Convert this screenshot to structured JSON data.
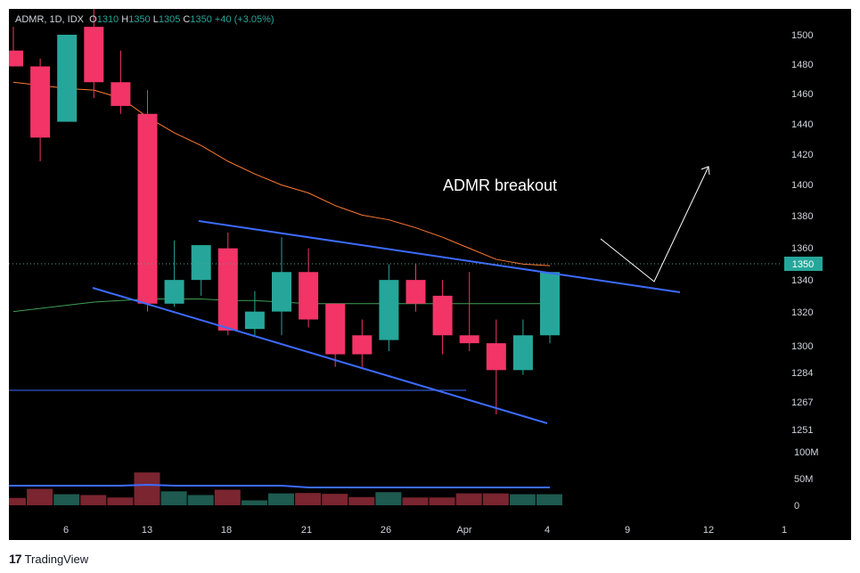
{
  "header": {
    "symbol": "ADMR, 1D, IDX",
    "o_label": "O",
    "o_value": "1310",
    "h_label": "H",
    "h_value": "1350",
    "l_label": "L",
    "l_value": "1305",
    "c_label": "C",
    "c_value": "1350",
    "change": "+40 (+3.05%)"
  },
  "footer": {
    "logo": "17",
    "brand": "TradingView"
  },
  "chart_data": {
    "type": "candlestick",
    "annotation": "ADMR breakout",
    "last_price_label": "1350",
    "y_ticks": [
      1500,
      1480,
      1460,
      1440,
      1420,
      1400,
      1380,
      1360,
      1340,
      1320,
      1300,
      1284,
      1267,
      1251
    ],
    "y_tick_labels": [
      "1500",
      "1480",
      "1460",
      "1440",
      "1420",
      "1400",
      "1380",
      "1360",
      "1340",
      "1320",
      "1300",
      "1284",
      "1267",
      "1251"
    ],
    "volume_ticks": [
      "100M",
      "50M",
      "0"
    ],
    "x_tick_labels": [
      "6",
      "13",
      "18",
      "21",
      "26",
      "Apr",
      "4",
      "9",
      "12",
      "1"
    ],
    "colors": {
      "up": "#26a69a",
      "down": "#f23467",
      "up_vol": "#1e5a4f",
      "down_vol": "#7a2530",
      "trend": "#3d6bff",
      "ma_orange": "#ff7a33",
      "ma_green": "#3fa055",
      "arrow": "#ffffff"
    },
    "candles": [
      {
        "o": 1490,
        "h": 1505,
        "l": 1480,
        "c": 1480
      },
      {
        "o": 1480,
        "h": 1485,
        "l": 1420,
        "c": 1435
      },
      {
        "o": 1445,
        "h": 1500,
        "l": 1445,
        "c": 1500
      },
      {
        "o": 1505,
        "h": 1525,
        "l": 1460,
        "c": 1470
      },
      {
        "o": 1470,
        "h": 1490,
        "l": 1450,
        "c": 1455
      },
      {
        "o": 1450,
        "h": 1465,
        "l": 1325,
        "c": 1330
      },
      {
        "o": 1330,
        "h": 1370,
        "l": 1328,
        "c": 1345
      },
      {
        "o": 1345,
        "h": 1367,
        "l": 1335,
        "c": 1367
      },
      {
        "o": 1365,
        "h": 1375,
        "l": 1310,
        "c": 1313
      },
      {
        "o": 1314,
        "h": 1338,
        "l": 1310,
        "c": 1325
      },
      {
        "o": 1325,
        "h": 1372,
        "l": 1310,
        "c": 1350
      },
      {
        "o": 1350,
        "h": 1365,
        "l": 1315,
        "c": 1320
      },
      {
        "o": 1330,
        "h": 1330,
        "l": 1290,
        "c": 1298
      },
      {
        "o": 1310,
        "h": 1320,
        "l": 1290,
        "c": 1298
      },
      {
        "o": 1307,
        "h": 1355,
        "l": 1300,
        "c": 1345
      },
      {
        "o": 1345,
        "h": 1355,
        "l": 1325,
        "c": 1330
      },
      {
        "o": 1335,
        "h": 1345,
        "l": 1298,
        "c": 1310
      },
      {
        "o": 1310,
        "h": 1350,
        "l": 1300,
        "c": 1305
      },
      {
        "o": 1305,
        "h": 1320,
        "l": 1260,
        "c": 1288
      },
      {
        "o": 1288,
        "h": 1320,
        "l": 1285,
        "c": 1310
      },
      {
        "o": 1310,
        "h": 1350,
        "l": 1305,
        "c": 1350
      }
    ],
    "volume": [
      18,
      40,
      27,
      25,
      19,
      80,
      34,
      25,
      38,
      12,
      29,
      30,
      28,
      20,
      32,
      19,
      19,
      29,
      29,
      27,
      27
    ],
    "ma_orange": [
      1470,
      1468,
      1466,
      1465,
      1460,
      1448,
      1438,
      1430,
      1420,
      1412,
      1405,
      1400,
      1392,
      1386,
      1383,
      1378,
      1372,
      1365,
      1358,
      1355,
      1354
    ],
    "ma_green": [
      1325,
      1327,
      1329,
      1331,
      1332,
      1333,
      1333,
      1333,
      1332,
      1332,
      1331,
      1330,
      1330,
      1330,
      1330,
      1330,
      1330,
      1330,
      1330,
      1330,
      1330
    ]
  }
}
